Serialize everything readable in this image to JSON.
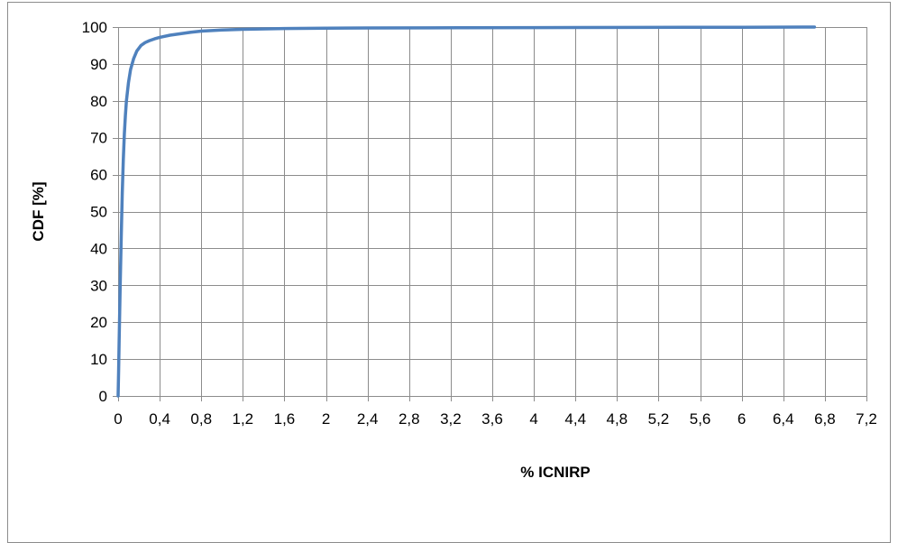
{
  "chart_data": {
    "type": "line",
    "title": "",
    "xlabel": "% ICNIRP",
    "ylabel": "CDF [%]",
    "xlim": [
      0,
      7.2
    ],
    "ylim": [
      0,
      100
    ],
    "x_ticks": [
      "0",
      "0,4",
      "0,8",
      "1,2",
      "1,6",
      "2",
      "2,4",
      "2,8",
      "3,2",
      "3,6",
      "4",
      "4,4",
      "4,8",
      "5,2",
      "5,6",
      "6",
      "6,4",
      "6,8",
      "7,2"
    ],
    "y_ticks": [
      "0",
      "10",
      "20",
      "30",
      "40",
      "50",
      "60",
      "70",
      "80",
      "90",
      "100"
    ],
    "grid": true,
    "legend": "none",
    "series_color": "#4f81bd",
    "series": [
      {
        "x": [
          0,
          0.005,
          0.01,
          0.02,
          0.03,
          0.04,
          0.05,
          0.06,
          0.07,
          0.08,
          0.1,
          0.12,
          0.15,
          0.18,
          0.22,
          0.26,
          0.3,
          0.35,
          0.4,
          0.5,
          0.6,
          0.7,
          0.8,
          1.0,
          1.2,
          1.6,
          2.0,
          2.4,
          3.0,
          4.0,
          5.0,
          6.0,
          6.7
        ],
        "y": [
          0,
          7,
          15,
          30,
          43,
          55,
          64,
          71,
          76,
          80,
          85,
          88.5,
          91.5,
          93.5,
          95,
          95.8,
          96.3,
          96.8,
          97.2,
          97.8,
          98.2,
          98.6,
          98.9,
          99.2,
          99.4,
          99.6,
          99.7,
          99.75,
          99.8,
          99.85,
          99.9,
          99.95,
          100
        ]
      }
    ]
  }
}
